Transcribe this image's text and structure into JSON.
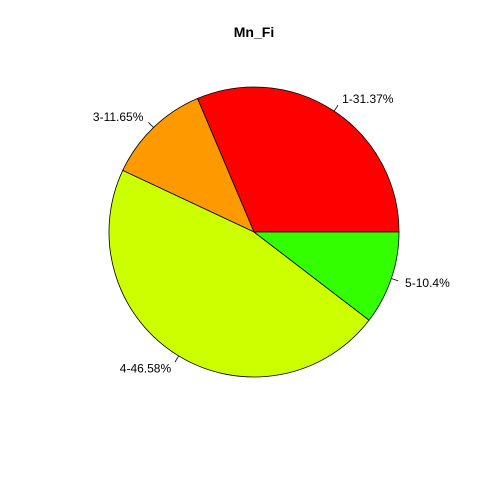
{
  "chart_data": {
    "type": "pie",
    "title": "Mn_Fi",
    "start_angle_deg": 0,
    "direction": "counterclockwise",
    "slices": [
      {
        "label": "1-31.37%",
        "value": 31.37,
        "color": "#FF0000"
      },
      {
        "label": "3-11.65%",
        "value": 11.65,
        "color": "#FF9900"
      },
      {
        "label": "4-46.58%",
        "value": 46.58,
        "color": "#CCFF00"
      },
      {
        "label": "5-10.4%",
        "value": 10.4,
        "color": "#33FF00"
      }
    ]
  }
}
